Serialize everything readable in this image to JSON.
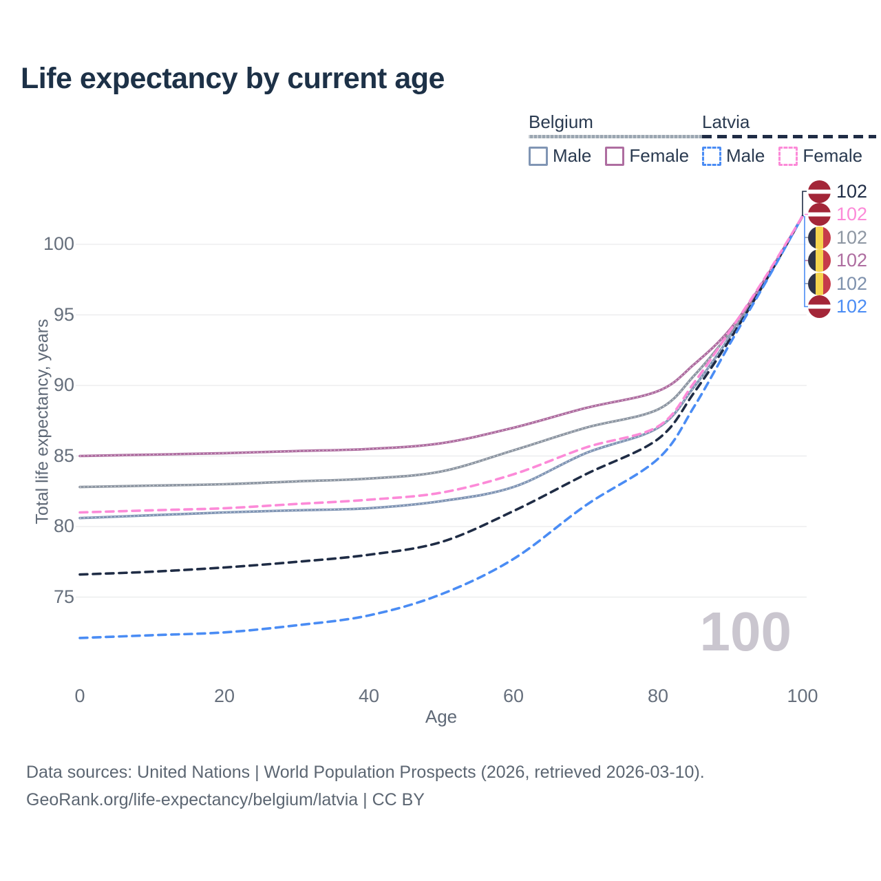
{
  "title": "Life expectancy by current age",
  "legend": {
    "groups": [
      {
        "country": "Belgium",
        "line_style": "solid",
        "underline_color": "#9ba6b1",
        "items": [
          {
            "label": "Male",
            "color": "#8095b4",
            "dash": false
          },
          {
            "label": "Female",
            "color": "#ae6da0",
            "dash": false
          }
        ]
      },
      {
        "country": "Latvia",
        "line_style": "dashed",
        "underline_color": "#1f2c45",
        "items": [
          {
            "label": "Male",
            "color": "#4a8cf4",
            "dash": true
          },
          {
            "label": "Female",
            "color": "#fc8ad8",
            "dash": true
          }
        ]
      }
    ]
  },
  "y_axis": {
    "label": "Total life expectancy, years",
    "ticks": [
      100,
      95,
      90,
      85,
      80,
      75
    ]
  },
  "x_axis": {
    "label": "Age",
    "ticks": [
      0,
      20,
      40,
      60,
      80,
      100
    ]
  },
  "watermark": "100",
  "end_labels": [
    {
      "value": "102",
      "flag": "latvia",
      "series": "Latvia",
      "color": "#1f2c45"
    },
    {
      "value": "102",
      "flag": "latvia",
      "series": "Latvia Female",
      "color": "#fc8ad8"
    },
    {
      "value": "102",
      "flag": "belgium",
      "series": "Belgium",
      "color": "#8d96a2"
    },
    {
      "value": "102",
      "flag": "belgium",
      "series": "Belgium Female",
      "color": "#ae6da0"
    },
    {
      "value": "102",
      "flag": "belgium",
      "series": "Belgium Male",
      "color": "#7e91ad"
    },
    {
      "value": "102",
      "flag": "latvia",
      "series": "Latvia Male",
      "color": "#4a8cf4"
    }
  ],
  "footer": {
    "line1": "Data sources: United Nations | World Population Prospects (2026, retrieved 2026-03-10).",
    "line2": "GeoRank.org/life-expectancy/belgium/latvia | CC BY"
  },
  "chart_data": {
    "type": "line",
    "title": "Life expectancy by current age",
    "xlabel": "Age",
    "ylabel": "Total life expectancy, years",
    "xlim": [
      0,
      100
    ],
    "ylim": [
      71,
      103
    ],
    "grid": "horizontal",
    "legend_position": "top-right",
    "x": [
      0,
      10,
      20,
      30,
      40,
      50,
      60,
      70,
      80,
      85,
      90,
      95,
      100
    ],
    "series": [
      {
        "name": "Belgium Male",
        "country": "Belgium",
        "sex": "male",
        "color": "#8095b4",
        "dash": false,
        "values": [
          80.6,
          80.8,
          81.0,
          81.15,
          81.3,
          81.8,
          82.8,
          85.2,
          87.0,
          89.9,
          93.5,
          97.5,
          102
        ]
      },
      {
        "name": "Belgium",
        "country": "Belgium",
        "sex": "total",
        "color": "#8d96a2",
        "dash": false,
        "values": [
          82.8,
          82.9,
          83.0,
          83.2,
          83.4,
          83.9,
          85.4,
          87.0,
          88.3,
          90.7,
          93.8,
          97.6,
          102
        ]
      },
      {
        "name": "Belgium Female",
        "country": "Belgium",
        "sex": "female",
        "color": "#ae6da0",
        "dash": false,
        "values": [
          85.0,
          85.1,
          85.2,
          85.35,
          85.5,
          85.9,
          87.0,
          88.4,
          89.6,
          91.5,
          94.0,
          97.7,
          102
        ]
      },
      {
        "name": "Latvia",
        "country": "Latvia",
        "sex": "total",
        "color": "#1f2c45",
        "dash": true,
        "values": [
          76.6,
          76.8,
          77.1,
          77.5,
          78.0,
          78.9,
          81.1,
          83.7,
          86.2,
          89.5,
          93.3,
          97.5,
          102
        ]
      },
      {
        "name": "Latvia Male",
        "country": "Latvia",
        "sex": "male",
        "color": "#4a8cf4",
        "dash": true,
        "values": [
          72.1,
          72.3,
          72.5,
          73.0,
          73.7,
          75.2,
          77.7,
          81.5,
          84.8,
          88.5,
          93.0,
          97.4,
          102
        ]
      },
      {
        "name": "Latvia Female",
        "country": "Latvia",
        "sex": "female",
        "color": "#fc8ad8",
        "dash": true,
        "values": [
          81.0,
          81.15,
          81.3,
          81.6,
          81.9,
          82.4,
          83.7,
          85.6,
          87.1,
          90.2,
          93.9,
          97.8,
          102
        ]
      }
    ]
  }
}
